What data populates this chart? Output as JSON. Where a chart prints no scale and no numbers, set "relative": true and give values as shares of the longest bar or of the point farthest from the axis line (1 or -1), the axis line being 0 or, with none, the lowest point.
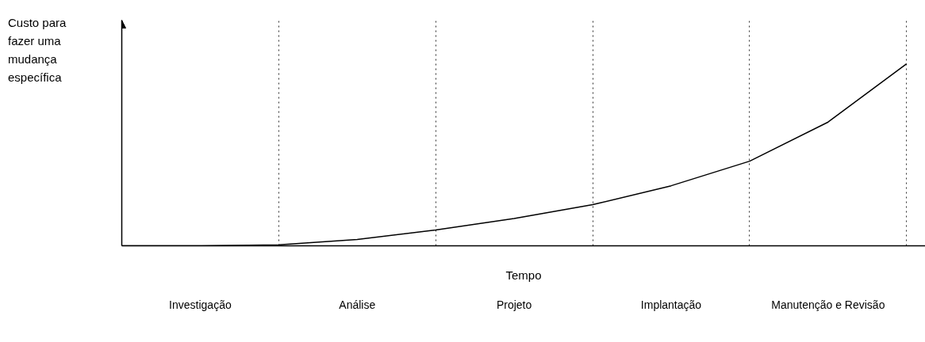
{
  "chart_data": {
    "type": "line",
    "relative": true,
    "xlabel": "Tempo",
    "ylabel": "Custo para fazer uma mudança específica",
    "categories": [
      null,
      "Investigação",
      null,
      "Análise",
      null,
      "Projeto",
      null,
      "Implantação",
      null,
      "Manutenção e Revisão",
      null
    ],
    "series": [
      {
        "color": "#000000",
        "values": [
          0,
          0,
          0.005,
          0.035,
          0.087,
          0.15,
          0.226,
          0.33,
          0.465,
          0.68,
          1.0
        ]
      }
    ],
    "grid": "x"
  }
}
